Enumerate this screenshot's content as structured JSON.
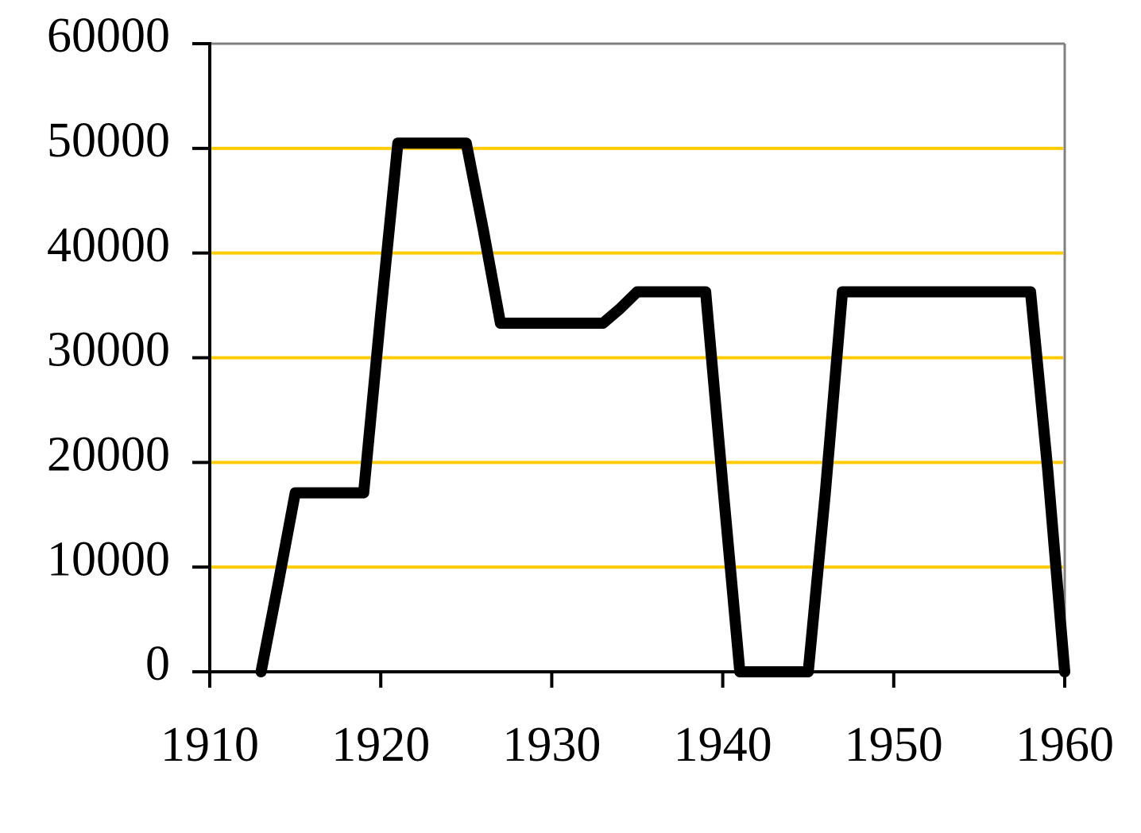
{
  "chart_data": {
    "type": "line",
    "x": [
      1913,
      1914,
      1915,
      1919,
      1920,
      1921,
      1925,
      1926,
      1927,
      1933,
      1934,
      1935,
      1939,
      1940,
      1941,
      1945,
      1946,
      1947,
      1958,
      1959,
      1960
    ],
    "series": [
      {
        "color": "#000000",
        "values": [
          0,
          8400,
          17100,
          17100,
          34200,
          50500,
          50500,
          42200,
          33300,
          33300,
          34700,
          36300,
          36300,
          17900,
          0,
          0,
          17100,
          36300,
          36300,
          19400,
          0
        ]
      }
    ],
    "xlim": [
      1910,
      1960
    ],
    "xticks": [
      1910,
      1920,
      1930,
      1940,
      1950,
      1960
    ],
    "ylim": [
      0,
      60000
    ],
    "yticks": [
      0,
      10000,
      20000,
      30000,
      40000,
      50000,
      60000
    ],
    "grid": true,
    "grid_color": "#ffcc00"
  }
}
